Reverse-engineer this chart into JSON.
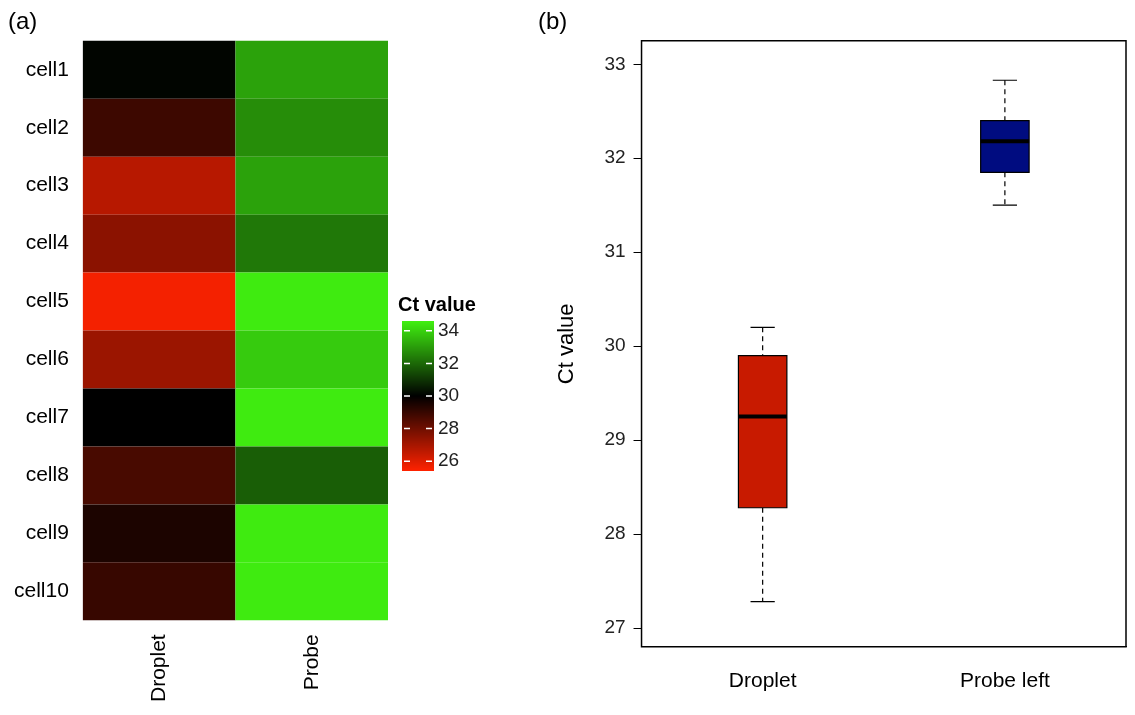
{
  "chart_data": [
    {
      "type": "heatmap",
      "title": "(a)",
      "categories": [
        "Droplet",
        "Probe"
      ],
      "y_categories": [
        "cell1",
        "cell2",
        "cell3",
        "cell4",
        "cell5",
        "cell6",
        "cell7",
        "cell8",
        "cell9",
        "cell10"
      ],
      "cells": [
        [
          30.1,
          33.1
        ],
        [
          28.9,
          32.7
        ],
        [
          26.7,
          33.1
        ],
        [
          27.5,
          32.3
        ],
        [
          25.6,
          34.5
        ],
        [
          27.2,
          33.9
        ],
        [
          30.0,
          34.5
        ],
        [
          28.7,
          31.8
        ],
        [
          29.5,
          34.5
        ],
        [
          29.0,
          34.5
        ]
      ],
      "clabel": "Ct value",
      "clim": [
        25.4,
        34.6
      ],
      "cticks": [
        26,
        28,
        30,
        32,
        34
      ]
    },
    {
      "type": "box",
      "title": "(b)",
      "categories": [
        "Droplet",
        "Probe left"
      ],
      "ylabel": "Ct value",
      "boxes": [
        {
          "low": 27.28,
          "q1": 28.28,
          "median": 29.25,
          "q3": 29.9,
          "high": 30.2
        },
        {
          "low": 31.5,
          "q1": 31.85,
          "median": 32.18,
          "q3": 32.4,
          "high": 32.83
        }
      ],
      "colors": [
        "#c81a00",
        "#000c80"
      ],
      "ylim": [
        26.8,
        33.25
      ],
      "yticks": [
        27,
        28,
        29,
        30,
        31,
        32,
        33
      ]
    }
  ]
}
